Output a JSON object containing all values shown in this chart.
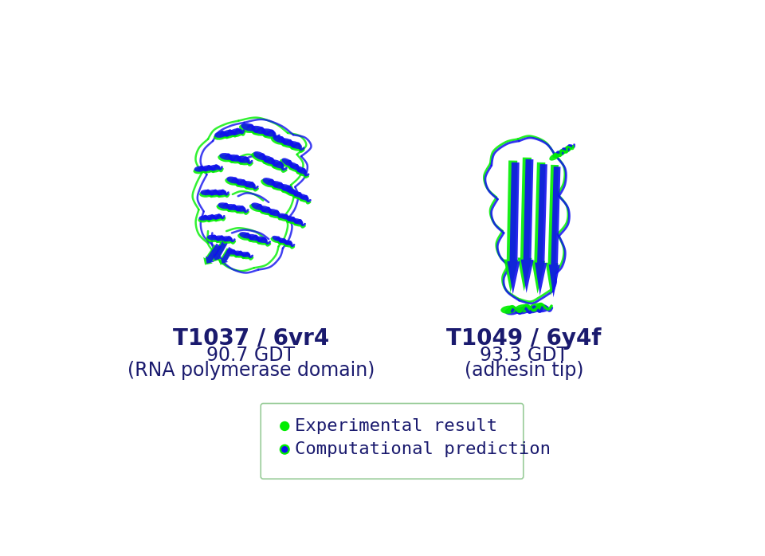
{
  "title1": "T1037 / 6vr4",
  "subtitle1a": "90.7 GDT",
  "subtitle1b": "(RNA polymerase domain)",
  "title2": "T1049 / 6y4f",
  "subtitle2a": "93.3 GDT",
  "subtitle2b": "(adhesin tip)",
  "legend_label1": "Experimental result",
  "legend_label2": "Computational prediction",
  "color_green": "#00ee00",
  "color_blue": "#1010ee",
  "color_text": "#1a1a6e",
  "background": "#ffffff",
  "legend_border": "#99cc99",
  "title_fontsize": 20,
  "subtitle_fontsize": 17,
  "legend_fontsize": 16,
  "fig_width": 9.6,
  "fig_height": 6.98
}
